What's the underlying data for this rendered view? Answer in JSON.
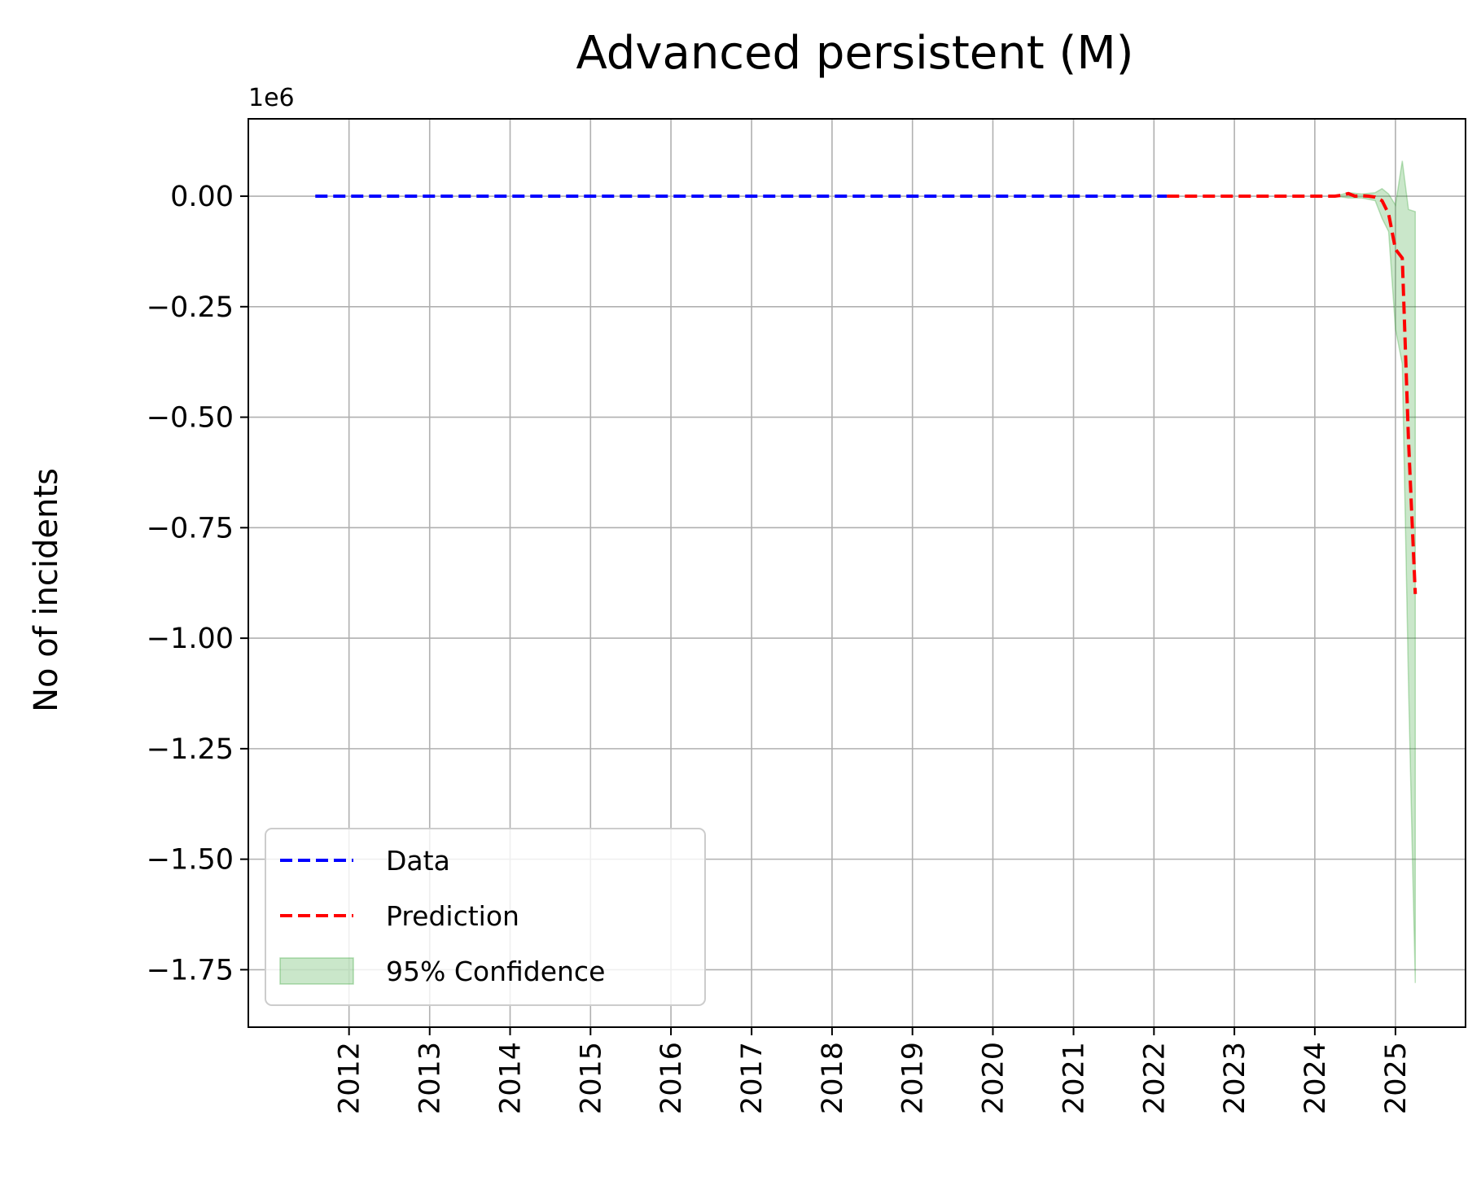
{
  "chart_data": {
    "type": "line",
    "title": "Advanced persistent (M)",
    "ylabel": "No of incidents",
    "xlabel": "",
    "y_offset_label": "1e6",
    "xlim": [
      "2010-10-01",
      "2025-11-15"
    ],
    "ylim": [
      -1.88,
      0.175
    ],
    "x_ticks": [
      "2012",
      "2013",
      "2014",
      "2015",
      "2016",
      "2017",
      "2018",
      "2019",
      "2020",
      "2021",
      "2022",
      "2023",
      "2024",
      "2025"
    ],
    "x_tick_dates": [
      "2012-01-01",
      "2013-01-01",
      "2014-01-01",
      "2015-01-01",
      "2016-01-01",
      "2017-01-01",
      "2018-01-01",
      "2019-01-01",
      "2020-01-01",
      "2021-01-01",
      "2022-01-01",
      "2023-01-01",
      "2024-01-01",
      "2025-01-01"
    ],
    "y_ticks": [
      0.0,
      -0.25,
      -0.5,
      -0.75,
      -1.0,
      -1.25,
      -1.5,
      -1.75
    ],
    "y_tick_labels": [
      "0.00",
      "−0.25",
      "−0.50",
      "−0.75",
      "−1.00",
      "−1.25",
      "−1.50",
      "−1.75"
    ],
    "grid": true,
    "legend_position": "lower-left",
    "series": [
      {
        "name": "Data",
        "style": "dashed",
        "color": "#0000ff",
        "x": [
          "2011-08-01",
          "2022-03-01"
        ],
        "y": [
          0.0,
          0.0
        ]
      },
      {
        "name": "Prediction",
        "style": "dashed",
        "color": "#ff0000",
        "x": [
          "2022-03-01",
          "2024-04-01",
          "2024-05-01",
          "2024-06-01",
          "2024-07-01",
          "2024-08-01",
          "2024-09-01",
          "2024-10-01",
          "2024-11-01",
          "2024-12-01",
          "2025-01-01",
          "2025-02-01",
          "2025-03-01",
          "2025-04-01"
        ],
        "y": [
          0.0,
          0.0,
          0.002,
          0.006,
          0.0,
          0.001,
          0.0,
          -0.002,
          -0.01,
          -0.04,
          -0.12,
          -0.14,
          -0.55,
          -0.9
        ]
      },
      {
        "name": "95% Confidence",
        "type": "band",
        "color": "#2ca02c",
        "x": [
          "2024-04-01",
          "2024-06-01",
          "2024-08-01",
          "2024-10-01",
          "2024-11-01",
          "2024-12-01",
          "2025-01-01",
          "2025-02-01",
          "2025-03-01",
          "2025-04-01"
        ],
        "upper": [
          0.0,
          0.008,
          0.005,
          0.008,
          0.017,
          0.005,
          -0.02,
          0.08,
          -0.03,
          -0.035
        ],
        "lower": [
          0.0,
          -0.004,
          -0.004,
          -0.01,
          -0.05,
          -0.08,
          -0.3,
          -0.38,
          -1.1,
          -1.78
        ]
      }
    ]
  }
}
